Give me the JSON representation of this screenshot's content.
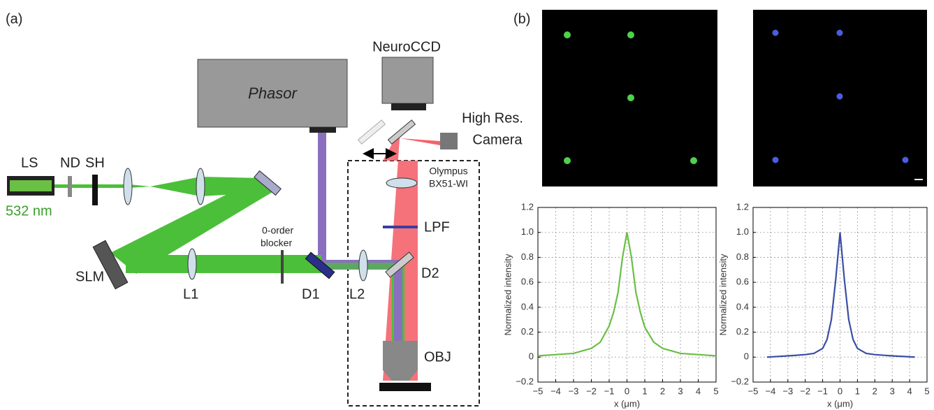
{
  "diagram": {
    "panel_a_label": "(a)",
    "panel_b_label": "(b)",
    "labels": {
      "ls": "LS",
      "nd": "ND",
      "sh": "SH",
      "wavelength": "532 nm",
      "slm": "SLM",
      "l1": "L1",
      "blocker": [
        "0-order",
        "blocker"
      ],
      "d1": "D1",
      "l2": "L2",
      "d2": "D2",
      "phasor": "Phasor",
      "neuroccd": "NeuroCCD",
      "camera": [
        "High Res.",
        "Camera"
      ],
      "microscope": [
        "Olympus",
        "BX51-WI"
      ],
      "lpf": "LPF",
      "obj": "OBJ"
    }
  },
  "chart_data": [
    {
      "type": "line",
      "color": "#6abf45",
      "x": [
        -5,
        -4,
        -3,
        -2.5,
        -2,
        -1.5,
        -1,
        -0.75,
        -0.5,
        -0.25,
        0,
        0.25,
        0.5,
        0.75,
        1,
        1.5,
        2,
        2.5,
        3,
        4,
        5
      ],
      "values": [
        0.01,
        0.02,
        0.03,
        0.05,
        0.07,
        0.12,
        0.25,
        0.36,
        0.52,
        0.8,
        1.0,
        0.8,
        0.52,
        0.36,
        0.24,
        0.12,
        0.07,
        0.05,
        0.03,
        0.02,
        0.01
      ],
      "xlim": [
        -5,
        5
      ],
      "xticks": [
        {
          "value": -5,
          "label": "−5"
        },
        {
          "value": -4,
          "label": "−4"
        },
        {
          "value": -3,
          "label": "−3"
        },
        {
          "value": -2,
          "label": "−2"
        },
        {
          "value": -1,
          "label": "−1"
        },
        0,
        1,
        2,
        3,
        4,
        5
      ],
      "ylim": [
        -0.2,
        1.2
      ],
      "yticks": [
        {
          "value": -0.2,
          "label": "−0.2"
        },
        0,
        0.2,
        0.4,
        0.6,
        0.8,
        {
          "value": 1,
          "label": "1.0"
        },
        1.2
      ],
      "x_label": "x (μm)",
      "y_label": "Normalized intensity",
      "grid": true
    },
    {
      "type": "line",
      "color": "#3a4fa3",
      "x": [
        -4.2,
        -3,
        -2,
        -1.5,
        -1,
        -0.75,
        -0.5,
        -0.25,
        0,
        0.25,
        0.5,
        0.75,
        1,
        1.5,
        2,
        3,
        4.3
      ],
      "values": [
        0,
        0.01,
        0.02,
        0.03,
        0.07,
        0.14,
        0.3,
        0.62,
        1.0,
        0.62,
        0.3,
        0.14,
        0.07,
        0.03,
        0.02,
        0.01,
        0
      ],
      "xlim": [
        -5,
        5
      ],
      "xticks": [
        {
          "value": -5,
          "label": "−5"
        },
        {
          "value": -4,
          "label": "−4"
        },
        {
          "value": -3,
          "label": "−3"
        },
        {
          "value": -2,
          "label": "−2"
        },
        {
          "value": -1,
          "label": "−1"
        },
        0,
        1,
        2,
        3,
        4,
        5
      ],
      "ylim": [
        -0.2,
        1.2
      ],
      "yticks": [
        {
          "value": -0.2,
          "label": "−0.2"
        },
        0,
        0.2,
        0.4,
        0.6,
        0.8,
        {
          "value": 1,
          "label": "1.0"
        },
        1.2
      ],
      "x_label": "x (μm)",
      "y_label": "Normalized intensity",
      "grid": true
    }
  ]
}
